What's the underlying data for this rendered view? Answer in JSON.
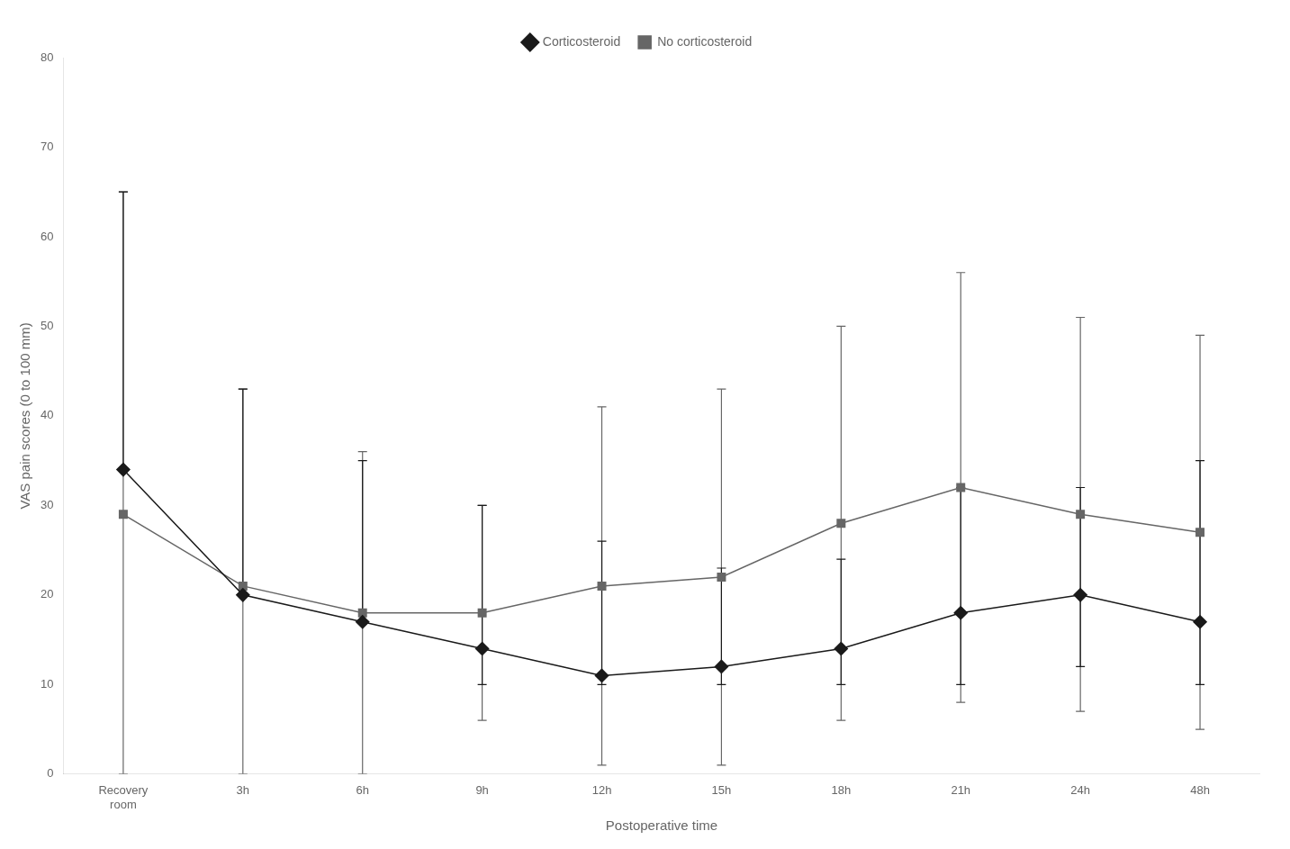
{
  "chart_data": {
    "type": "line",
    "xlabel": "Postoperative time",
    "ylabel": "VAS pain scores (0 to 100 mm)",
    "categories": [
      "Recovery\nroom",
      "3h",
      "6h",
      "9h",
      "12h",
      "15h",
      "18h",
      "21h",
      "24h",
      "48h"
    ],
    "series": [
      {
        "name": "Corticosteroid",
        "color": "#1a1a1a",
        "marker": "diamond",
        "line_style": "solid",
        "values": [
          34,
          20,
          17,
          14,
          11,
          12,
          14,
          18,
          20,
          17
        ],
        "error_up": [
          31,
          23,
          18,
          16,
          15,
          11,
          10,
          14,
          12,
          18
        ],
        "error_down": [
          0,
          0,
          0,
          4,
          1,
          2,
          4,
          8,
          8,
          7
        ]
      },
      {
        "name": "No corticosteroid",
        "color": "#666666",
        "marker": "square",
        "line_style": "solid",
        "values": [
          29,
          21,
          18,
          18,
          21,
          22,
          28,
          32,
          29,
          27
        ],
        "error_up": [
          36,
          22,
          18,
          12,
          20,
          21,
          22,
          24,
          22,
          22
        ],
        "error_down": [
          29,
          21,
          18,
          12,
          20,
          21,
          22,
          24,
          22,
          22
        ]
      }
    ],
    "ylim": [
      0,
      80
    ],
    "yticks": [
      0,
      10,
      20,
      30,
      40,
      50,
      60,
      70,
      80
    ],
    "grid": false,
    "legend": "top"
  }
}
